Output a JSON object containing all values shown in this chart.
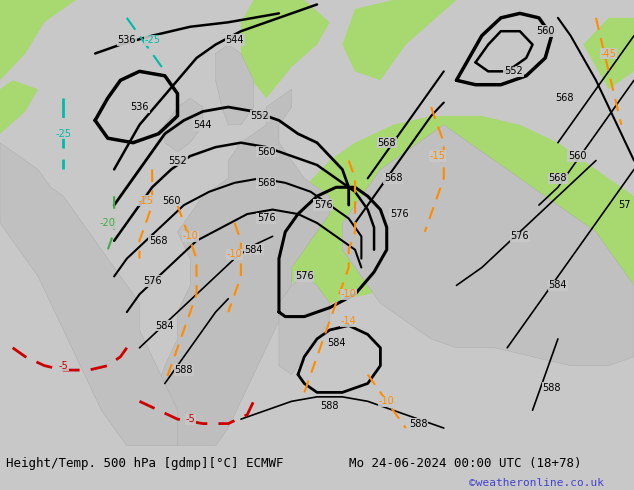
{
  "title_left": "Height/Temp. 500 hPa [gdmp][°C] ECMWF",
  "title_right": "Mo 24-06-2024 00:00 UTC (18+78)",
  "credit": "©weatheronline.co.uk",
  "fig_width": 6.34,
  "fig_height": 4.9,
  "dpi": 100,
  "title_fontsize": 9,
  "credit_fontsize": 8,
  "credit_color": "#4444cc",
  "map_gray": "#c8c8c8",
  "map_green": "#a8d878",
  "map_light_gray": "#e0e0e0",
  "ocean_color": "#d0d0d0",
  "land_color": "#c8c8c8"
}
